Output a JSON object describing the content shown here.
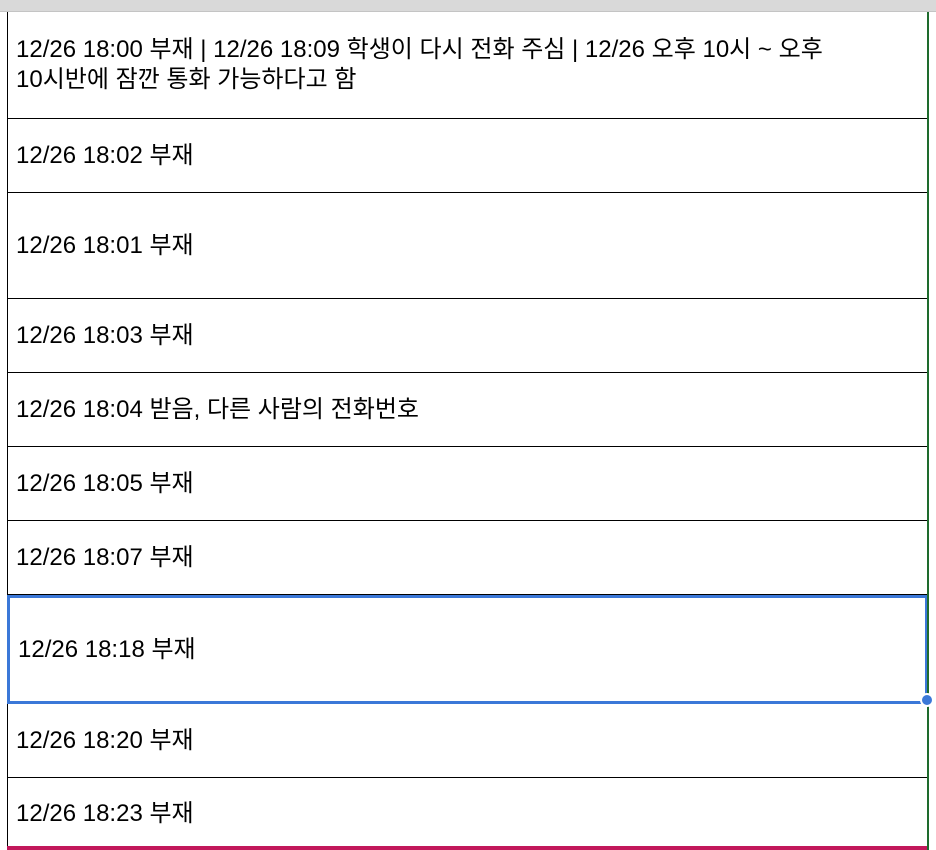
{
  "sheet": {
    "rows": [
      {
        "text": "12/26 18:00 부재 | 12/26 18:09 학생이 다시 전화 주심 | 12/26 오후 10시 ~ 오후 10시반에 잠깐 통화 가능하다고 함"
      },
      {
        "text": "12/26 18:02 부재"
      },
      {
        "text": "12/26 18:01 부재"
      },
      {
        "text": "12/26 18:03 부재"
      },
      {
        "text": "12/26 18:04 받음, 다른 사람의 전화번호"
      },
      {
        "text": "12/26 18:05 부재"
      },
      {
        "text": "12/26 18:07 부재"
      },
      {
        "text": "12/26 18:18 부재",
        "selected": true
      },
      {
        "text": "12/26 18:20 부재"
      },
      {
        "text": "12/26 18:23 부재"
      }
    ],
    "selection_color": "#3b78d8",
    "accent_color": "#c2185b"
  }
}
